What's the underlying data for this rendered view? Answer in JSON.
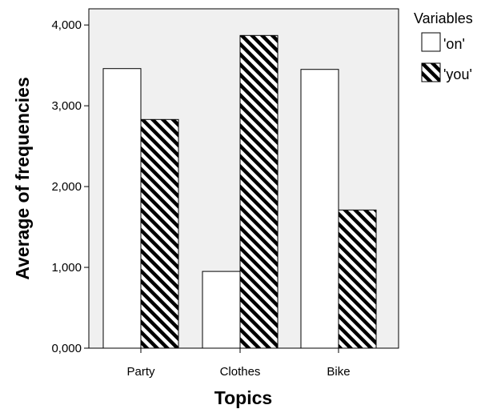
{
  "chart_data": {
    "type": "bar",
    "title": "",
    "xlabel": "Topics",
    "ylabel": "Average of frequencies",
    "categories": [
      "Party",
      "Clothes",
      "Bike"
    ],
    "series": [
      {
        "name": "'on'",
        "values": [
          3.46,
          0.95,
          3.45
        ],
        "pattern": "none",
        "fill": "#ffffff"
      },
      {
        "name": "'you'",
        "values": [
          2.83,
          3.87,
          1.71
        ],
        "pattern": "diagonal-hatch",
        "fill": "#000000"
      }
    ],
    "ylim": [
      0,
      4.2
    ],
    "yticks": [
      0,
      1,
      2,
      3,
      4
    ],
    "ytick_labels": [
      "0,000",
      "1,000",
      "2,000",
      "3,000",
      "4,000"
    ],
    "legend": {
      "title": "Variables",
      "placement": "right"
    },
    "grid": false,
    "plot_background": "#f0f0f0"
  }
}
